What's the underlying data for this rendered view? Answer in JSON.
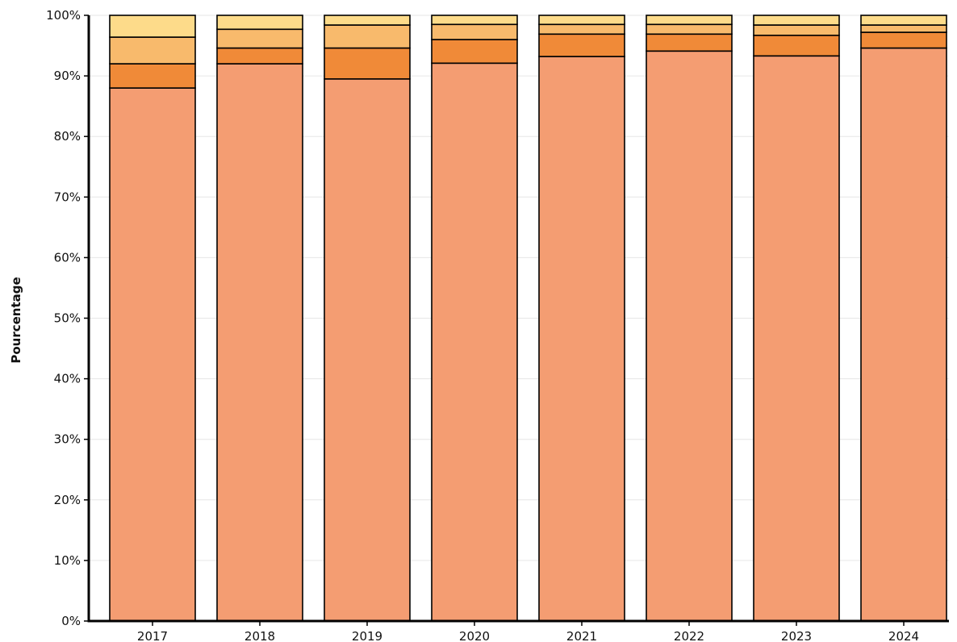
{
  "chart_data": {
    "type": "bar",
    "stacked": true,
    "title": "",
    "xlabel": "",
    "ylabel": "Pourcentage",
    "ylim": [
      0,
      100
    ],
    "y_ticks": [
      "0%",
      "10%",
      "20%",
      "30%",
      "40%",
      "50%",
      "60%",
      "70%",
      "80%",
      "90%",
      "100%"
    ],
    "grid": "horizontal",
    "legend": "none",
    "categories": [
      "2017",
      "2018",
      "2019",
      "2020",
      "2021",
      "2022",
      "2023",
      "2024"
    ],
    "series": [
      {
        "color": "#F49D72",
        "values": [
          88.0,
          92.0,
          89.5,
          92.1,
          93.2,
          94.1,
          93.3,
          94.6
        ]
      },
      {
        "color": "#F08A38",
        "values": [
          4.0,
          2.6,
          5.1,
          3.9,
          3.7,
          2.8,
          3.4,
          2.6
        ]
      },
      {
        "color": "#F8BA6C",
        "values": [
          4.4,
          3.1,
          3.8,
          2.5,
          1.6,
          1.6,
          1.7,
          1.2
        ]
      },
      {
        "color": "#FDDB8A",
        "values": [
          3.6,
          2.3,
          1.6,
          1.5,
          1.5,
          1.5,
          1.6,
          1.6
        ]
      }
    ],
    "colors": {
      "axis": "#000000",
      "grid": "#e6e6e6",
      "bar_outline": "#000000"
    }
  }
}
